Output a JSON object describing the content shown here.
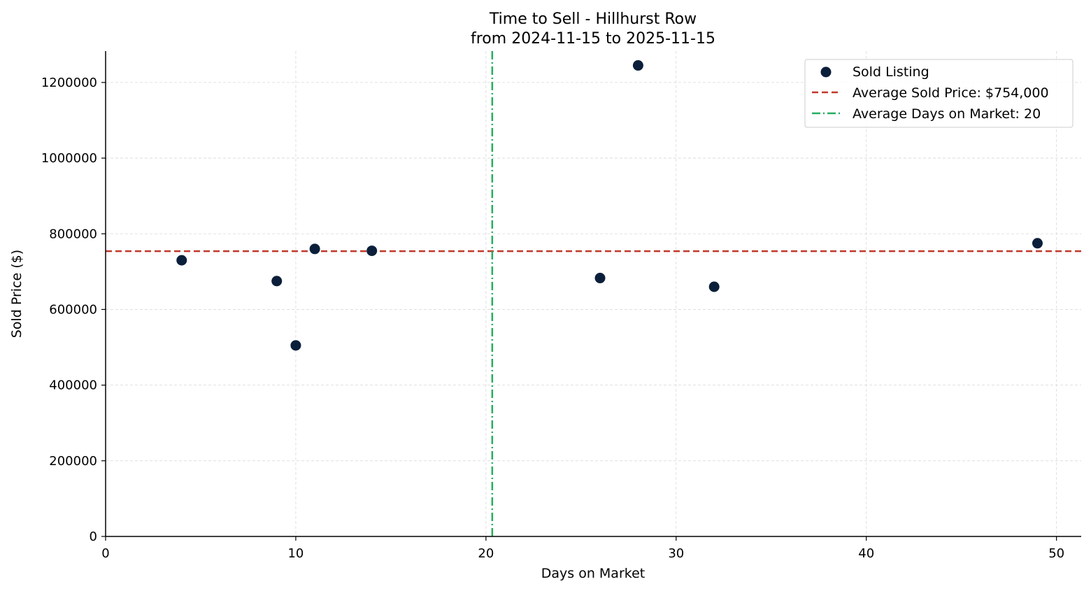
{
  "chart_data": {
    "type": "scatter",
    "title": "Time to Sell - Hillhurst Row",
    "subtitle": "from 2024-11-15 to 2025-11-15",
    "xlabel": "Days on Market",
    "ylabel": "Sold Price ($)",
    "xlim": [
      0,
      51.3
    ],
    "ylim": [
      0,
      1283000
    ],
    "xticks": [
      0,
      10,
      20,
      30,
      40,
      50
    ],
    "yticks": [
      0,
      200000,
      400000,
      600000,
      800000,
      1000000,
      1200000
    ],
    "grid": true,
    "legend_position": "top-right",
    "series": [
      {
        "name": "Sold Listing",
        "kind": "scatter",
        "color": "#0b1f3a",
        "points": [
          {
            "x": 4,
            "y": 730000
          },
          {
            "x": 9,
            "y": 675000
          },
          {
            "x": 10,
            "y": 505000
          },
          {
            "x": 11,
            "y": 760000
          },
          {
            "x": 14,
            "y": 755000
          },
          {
            "x": 26,
            "y": 683000
          },
          {
            "x": 28,
            "y": 1245000
          },
          {
            "x": 32,
            "y": 660000
          },
          {
            "x": 49,
            "y": 775000
          }
        ]
      }
    ],
    "reference_lines": [
      {
        "name": "Average Sold Price: $754,000",
        "orientation": "horizontal",
        "value": 754000,
        "color": "#c0392b",
        "style": "dashed"
      },
      {
        "name": "Average Days on Market: 20",
        "orientation": "vertical",
        "value": 20.33,
        "color": "#27ae60",
        "style": "dashdot"
      }
    ]
  }
}
